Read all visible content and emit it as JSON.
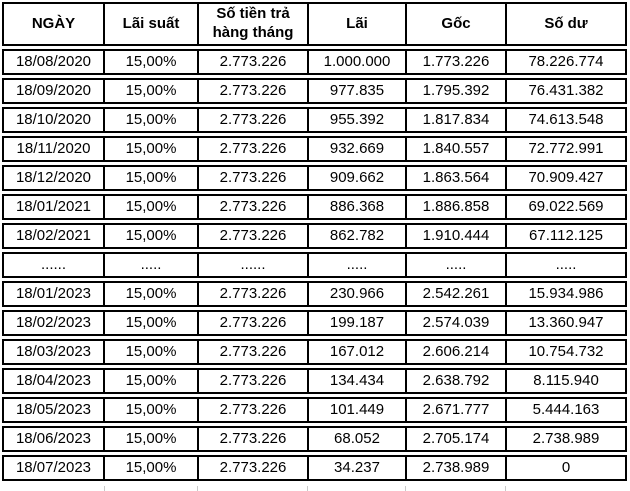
{
  "colors": {
    "border": "#000000",
    "text": "#000000",
    "gridline": "#c9c9c9",
    "background": "#ffffff"
  },
  "chart_data": {
    "type": "table",
    "title": "",
    "columns": [
      "NGÀY",
      "Lãi suất",
      "Số tiền trả hàng tháng",
      "Lãi",
      "Gốc",
      "Số dư"
    ],
    "rows": [
      [
        "18/08/2020",
        "15,00%",
        "2.773.226",
        "1.000.000",
        "1.773.226",
        "78.226.774"
      ],
      [
        "18/09/2020",
        "15,00%",
        "2.773.226",
        "977.835",
        "1.795.392",
        "76.431.382"
      ],
      [
        "18/10/2020",
        "15,00%",
        "2.773.226",
        "955.392",
        "1.817.834",
        "74.613.548"
      ],
      [
        "18/11/2020",
        "15,00%",
        "2.773.226",
        "932.669",
        "1.840.557",
        "72.772.991"
      ],
      [
        "18/12/2020",
        "15,00%",
        "2.773.226",
        "909.662",
        "1.863.564",
        "70.909.427"
      ],
      [
        "18/01/2021",
        "15,00%",
        "2.773.226",
        "886.368",
        "1.886.858",
        "69.022.569"
      ],
      [
        "18/02/2021",
        "15,00%",
        "2.773.226",
        "862.782",
        "1.910.444",
        "67.112.125"
      ],
      [
        "......",
        ".....",
        "......",
        ".....",
        ".....",
        "....."
      ],
      [
        "18/01/2023",
        "15,00%",
        "2.773.226",
        "230.966",
        "2.542.261",
        "15.934.986"
      ],
      [
        "18/02/2023",
        "15,00%",
        "2.773.226",
        "199.187",
        "2.574.039",
        "13.360.947"
      ],
      [
        "18/03/2023",
        "15,00%",
        "2.773.226",
        "167.012",
        "2.606.214",
        "10.754.732"
      ],
      [
        "18/04/2023",
        "15,00%",
        "2.773.226",
        "134.434",
        "2.638.792",
        "8.115.940"
      ],
      [
        "18/05/2023",
        "15,00%",
        "2.773.226",
        "101.449",
        "2.671.777",
        "5.444.163"
      ],
      [
        "18/06/2023",
        "15,00%",
        "2.773.226",
        "68.052",
        "2.705.174",
        "2.738.989"
      ],
      [
        "18/07/2023",
        "15,00%",
        "2.773.226",
        "34.237",
        "2.738.989",
        "0"
      ]
    ]
  }
}
